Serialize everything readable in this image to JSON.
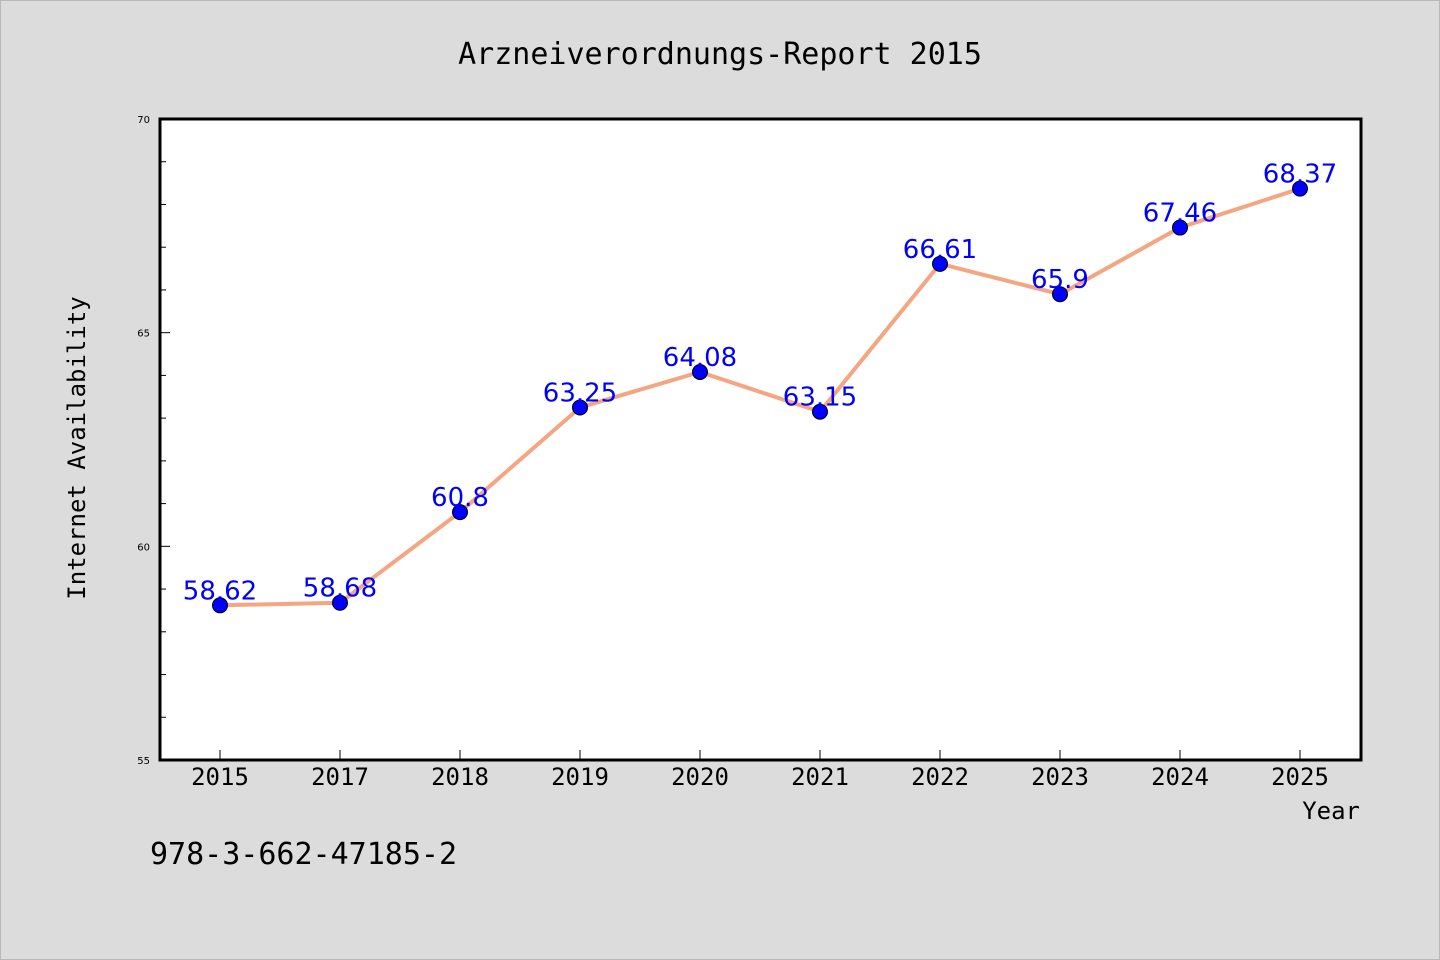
{
  "chart_data": {
    "type": "line",
    "title": "Arzneiverordnungs-Report 2015",
    "xlabel": "Year",
    "ylabel": "Internet Availability",
    "categories": [
      "2015",
      "2017",
      "2018",
      "2019",
      "2020",
      "2021",
      "2022",
      "2023",
      "2024",
      "2025"
    ],
    "series": [
      {
        "values": [
          58.62,
          58.68,
          60.8,
          63.25,
          64.08,
          63.15,
          66.61,
          65.9,
          67.46,
          68.37
        ],
        "data_labels": [
          "58.62",
          "58.68",
          "60.8",
          "63.25",
          "64.08",
          "63.15",
          "66.61",
          "65.9",
          "67.46",
          "68.37"
        ],
        "line_color": "#f4a582",
        "marker_color": "#0000ff",
        "label_color": "#0000ff"
      }
    ],
    "ylim": [
      55,
      70
    ],
    "yticks": [
      "55",
      "60",
      "65",
      "70"
    ],
    "grid": false,
    "legend": "none"
  },
  "footer": {
    "isbn": "978-3-662-47185-2"
  },
  "colors": {
    "background": "#dcdcdc",
    "plot_background": "#ffffff",
    "axis": "#000000"
  }
}
